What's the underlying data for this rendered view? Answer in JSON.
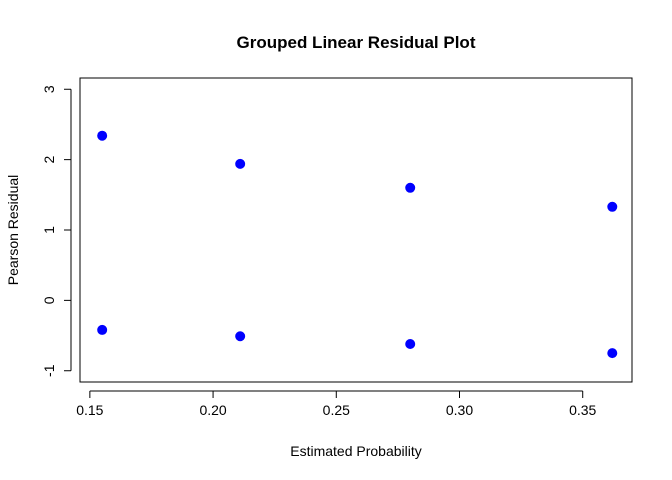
{
  "chart_data": {
    "type": "scatter",
    "title": "Grouped Linear Residual Plot",
    "xlabel": "Estimated Probability",
    "ylabel": "Pearson Residual",
    "xlim": [
      0.146,
      0.37
    ],
    "ylim": [
      -1.16,
      3.16
    ],
    "x_ticks": [
      0.15,
      0.2,
      0.25,
      0.3,
      0.35
    ],
    "x_tick_labels": [
      "0.15",
      "0.20",
      "0.25",
      "0.30",
      "0.35"
    ],
    "y_ticks": [
      -1,
      0,
      1,
      2,
      3
    ],
    "y_tick_labels": [
      "-1",
      "0",
      "1",
      "2",
      "3"
    ],
    "grid": false,
    "point_color": "#0000ff",
    "points": [
      {
        "x": 0.155,
        "y": 2.34
      },
      {
        "x": 0.155,
        "y": -0.42
      },
      {
        "x": 0.211,
        "y": 1.94
      },
      {
        "x": 0.211,
        "y": -0.51
      },
      {
        "x": 0.28,
        "y": 1.6
      },
      {
        "x": 0.28,
        "y": -0.62
      },
      {
        "x": 0.362,
        "y": 1.33
      },
      {
        "x": 0.362,
        "y": -0.75
      }
    ]
  }
}
